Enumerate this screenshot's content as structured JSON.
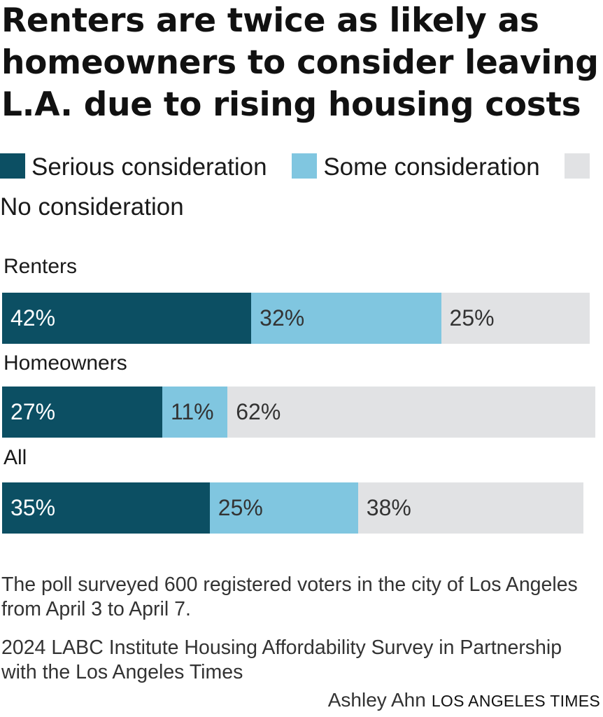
{
  "title": "Renters are twice as likely as homeowners to consider leaving L.A. due to rising housing costs",
  "colors": {
    "serious": "#0c4f63",
    "some": "#80c6e0",
    "none": "#e1e2e4",
    "label_on_dark": "#ffffff",
    "label_on_light": "#333333"
  },
  "chart_data": {
    "type": "bar",
    "orientation": "horizontal",
    "stacked": true,
    "title": "Renters are twice as likely as homeowners to consider leaving L.A. due to rising housing costs",
    "legend_position": "top",
    "grid": false,
    "categories": [
      "Renters",
      "Homeowners",
      "All"
    ],
    "series": [
      {
        "name": "Serious consideration",
        "values": [
          42,
          27,
          35
        ],
        "labels": [
          "42%",
          "27%",
          "35%"
        ]
      },
      {
        "name": "Some consideration",
        "values": [
          32,
          11,
          25
        ],
        "labels": [
          "32%",
          "11%",
          "25%"
        ]
      },
      {
        "name": "No consideration",
        "values": [
          25,
          62,
          38
        ],
        "labels": [
          "25%",
          "62%",
          "38%"
        ]
      }
    ],
    "xlim": [
      0,
      100
    ]
  },
  "footer": {
    "note": "The poll surveyed 600 registered voters in the city of Los Angeles from April 3 to April 7.",
    "source": "2024 LABC Institute Housing Affordability Survey in Partnership with the Los Angeles Times",
    "author": "Ashley Ahn",
    "brand": "LOS ANGELES TIMES"
  }
}
